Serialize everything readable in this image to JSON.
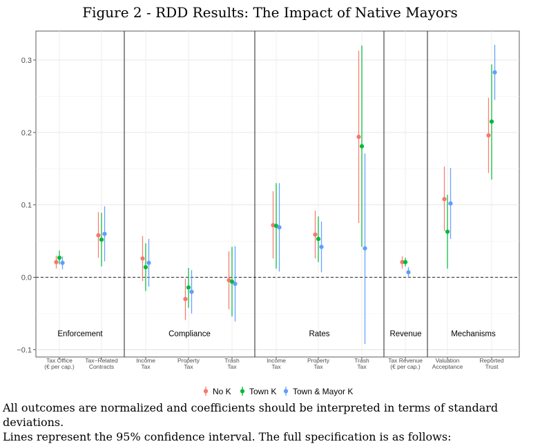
{
  "title": "Figure 2 - RDD Results: The Impact of Native Mayors",
  "notes": [
    "All outcomes are normalized and coefficients should be interpreted in terms of standard deviations.",
    "Lines represent the 95% confidence interval. The full specification is as follows:"
  ],
  "chart_data": {
    "type": "scatter",
    "title": "Figure 2 - RDD Results: The Impact of Native Mayors",
    "xlabel": "",
    "ylabel": "",
    "ylim": [
      -0.11,
      0.34
    ],
    "yticks": [
      -0.1,
      0.0,
      0.1,
      0.2,
      0.3
    ],
    "ytick_labels": [
      "−0.1",
      "0.0",
      "0.1",
      "0.2",
      "0.3"
    ],
    "grid": true,
    "reference_line": 0,
    "legend_position": "bottom",
    "panels": [
      "Enforcement",
      "Compliance",
      "Rates",
      "Revenue",
      "Mechanisms"
    ],
    "categories": [
      {
        "label": [
          "Tax Office",
          "(€ per cap.)"
        ],
        "panel": "Enforcement"
      },
      {
        "label": [
          "Tax−Related",
          "Contracts"
        ],
        "panel": "Enforcement"
      },
      {
        "label": [
          "Income",
          "Tax"
        ],
        "panel": "Compliance"
      },
      {
        "label": [
          "Property",
          "Tax"
        ],
        "panel": "Compliance"
      },
      {
        "label": [
          "Trash",
          "Tax"
        ],
        "panel": "Compliance"
      },
      {
        "label": [
          "Income",
          "Tax"
        ],
        "panel": "Rates"
      },
      {
        "label": [
          "Property",
          "Tax"
        ],
        "panel": "Rates"
      },
      {
        "label": [
          "Trash",
          "Tax"
        ],
        "panel": "Rates"
      },
      {
        "label": [
          "Tax Revenue",
          "(€ per cap.)"
        ],
        "panel": "Revenue"
      },
      {
        "label": [
          "Valuation",
          "Acceptance"
        ],
        "panel": "Mechanisms"
      },
      {
        "label": [
          "Reported",
          "Trust"
        ],
        "panel": "Mechanisms"
      }
    ],
    "series": [
      {
        "name": "No K",
        "color": "#f8766d",
        "values": [
          0.021,
          0.058,
          0.026,
          -0.03,
          -0.004,
          0.072,
          0.059,
          0.194,
          0.021,
          0.108,
          0.196
        ],
        "ci_low": [
          0.012,
          0.027,
          -0.005,
          -0.059,
          -0.044,
          0.026,
          0.026,
          0.075,
          0.012,
          0.064,
          0.144
        ],
        "ci_high": [
          0.03,
          0.09,
          0.057,
          -0.002,
          0.036,
          0.119,
          0.092,
          0.313,
          0.029,
          0.153,
          0.248
        ]
      },
      {
        "name": "Town K",
        "color": "#00ba38",
        "values": [
          0.027,
          0.052,
          0.014,
          -0.014,
          -0.006,
          0.071,
          0.053,
          0.181,
          0.021,
          0.063,
          0.215
        ],
        "ci_low": [
          0.018,
          0.015,
          -0.019,
          -0.042,
          -0.054,
          0.012,
          0.021,
          0.042,
          0.015,
          0.012,
          0.135
        ],
        "ci_high": [
          0.037,
          0.089,
          0.047,
          0.013,
          0.042,
          0.13,
          0.084,
          0.32,
          0.027,
          0.114,
          0.294
        ]
      },
      {
        "name": "Town & Mayor K",
        "color": "#619cff",
        "values": [
          0.02,
          0.06,
          0.02,
          -0.02,
          -0.009,
          0.069,
          0.042,
          0.04,
          0.007,
          0.102,
          0.283
        ],
        "ci_low": [
          0.011,
          0.022,
          -0.013,
          -0.05,
          -0.061,
          0.008,
          0.007,
          -0.092,
          0.0,
          0.053,
          0.245
        ],
        "ci_high": [
          0.029,
          0.098,
          0.053,
          0.01,
          0.043,
          0.13,
          0.077,
          0.171,
          0.014,
          0.151,
          0.321
        ]
      }
    ]
  }
}
